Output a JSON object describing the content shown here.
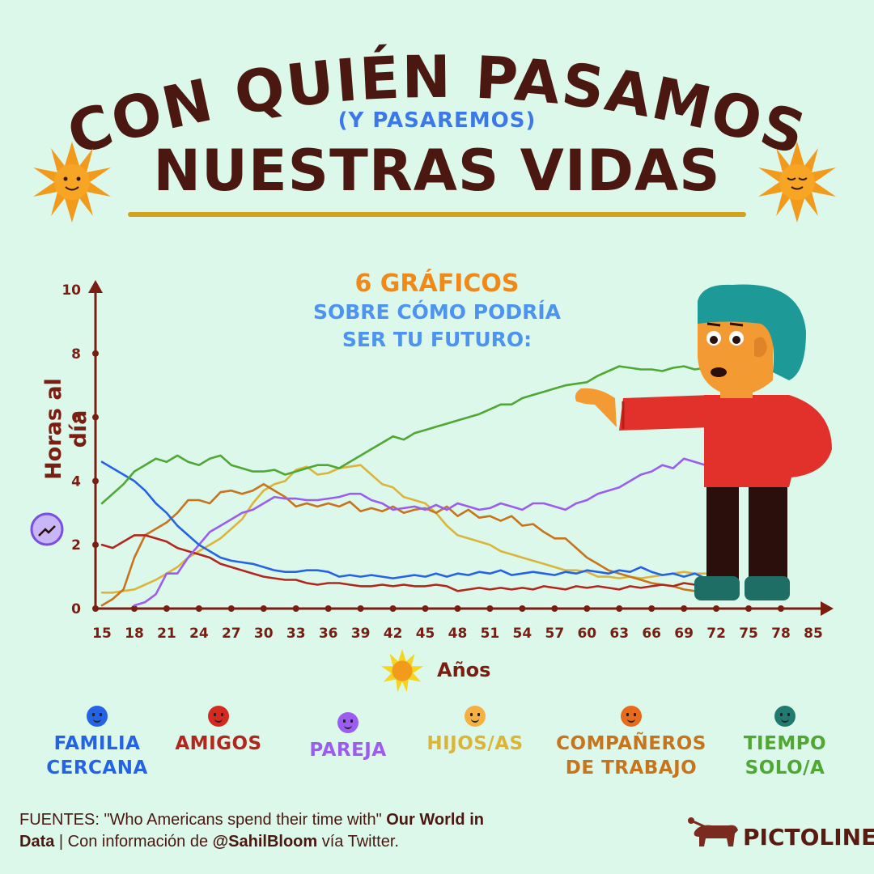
{
  "title": {
    "line1": "CON QUIÉN PASAMOS",
    "paren": "(Y PASAREMOS)",
    "line2": "NUESTRAS VIDAS"
  },
  "intro": {
    "highlight": "6 GRÁFICOS",
    "line1": "SOBRE CÓMO PODRÍA",
    "line2": "SER TU FUTURO:"
  },
  "colors": {
    "background": "#dcf8ea",
    "title": "#4a1810",
    "axis": "#7a1e12",
    "familia": "#2563e6",
    "amigos": "#b3261e",
    "pareja": "#9b5cf0",
    "hijos": "#dcb43a",
    "companeros": "#c7741c",
    "solo": "#4ea832"
  },
  "chart_data": {
    "type": "line",
    "xlabel": "Años",
    "ylabel": "Horas al día",
    "ylim": [
      0,
      10
    ],
    "y_ticks": [
      "0",
      "2",
      "4",
      "6",
      "8",
      "10"
    ],
    "x_ticks": [
      "15",
      "18",
      "21",
      "24",
      "27",
      "30",
      "33",
      "36",
      "39",
      "42",
      "45",
      "48",
      "51",
      "54",
      "57",
      "60",
      "63",
      "66",
      "69",
      "72",
      "75",
      "78",
      "85"
    ],
    "grid": false,
    "legend_position": "bottom",
    "series": [
      {
        "name": "FAMILIA CERCANA",
        "color": "#2563e6",
        "x": [
          15,
          16,
          17,
          18,
          19,
          20,
          21,
          22,
          23,
          24,
          25,
          26,
          27,
          28,
          29,
          30,
          31,
          32,
          33,
          34,
          35,
          36,
          37,
          38,
          39,
          40,
          41,
          42,
          43,
          44,
          45,
          46,
          47,
          48,
          49,
          50,
          51,
          52,
          53,
          54,
          55,
          56,
          57,
          58,
          59,
          60,
          61,
          62,
          63,
          64,
          65,
          66,
          67,
          68,
          69,
          70,
          71
        ],
        "y": [
          4.6,
          4.4,
          4.2,
          4.0,
          3.7,
          3.3,
          3.0,
          2.6,
          2.3,
          2.0,
          1.8,
          1.6,
          1.5,
          1.45,
          1.4,
          1.3,
          1.2,
          1.15,
          1.15,
          1.2,
          1.2,
          1.15,
          1.0,
          1.05,
          1.0,
          1.05,
          1.0,
          0.95,
          1.0,
          1.05,
          1.0,
          1.1,
          1.0,
          1.1,
          1.05,
          1.15,
          1.1,
          1.2,
          1.05,
          1.1,
          1.15,
          1.1,
          1.05,
          1.15,
          1.1,
          1.2,
          1.15,
          1.1,
          1.2,
          1.15,
          1.3,
          1.15,
          1.05,
          1.1,
          1.0,
          1.1,
          0.95
        ]
      },
      {
        "name": "AMIGOS",
        "color": "#b3261e",
        "x": [
          15,
          16,
          17,
          18,
          19,
          20,
          21,
          22,
          23,
          24,
          25,
          26,
          27,
          28,
          29,
          30,
          31,
          32,
          33,
          34,
          35,
          36,
          37,
          38,
          39,
          40,
          41,
          42,
          43,
          44,
          45,
          46,
          47,
          48,
          49,
          50,
          51,
          52,
          53,
          54,
          55,
          56,
          57,
          58,
          59,
          60,
          61,
          62,
          63,
          64,
          65,
          66,
          67,
          68,
          69,
          70,
          71,
          72
        ],
        "y": [
          2.0,
          1.9,
          2.1,
          2.3,
          2.3,
          2.2,
          2.1,
          1.9,
          1.8,
          1.7,
          1.6,
          1.4,
          1.3,
          1.2,
          1.1,
          1.0,
          0.95,
          0.9,
          0.9,
          0.8,
          0.75,
          0.8,
          0.8,
          0.75,
          0.7,
          0.7,
          0.75,
          0.7,
          0.75,
          0.7,
          0.7,
          0.75,
          0.7,
          0.55,
          0.6,
          0.65,
          0.6,
          0.65,
          0.6,
          0.65,
          0.6,
          0.7,
          0.65,
          0.6,
          0.7,
          0.65,
          0.7,
          0.65,
          0.6,
          0.7,
          0.65,
          0.7,
          0.75,
          0.7,
          0.8,
          0.75,
          0.85,
          0.8
        ]
      },
      {
        "name": "PAREJA",
        "color": "#9b5cf0",
        "x": [
          18,
          19,
          20,
          21,
          22,
          23,
          24,
          25,
          26,
          27,
          28,
          29,
          30,
          31,
          32,
          33,
          34,
          35,
          36,
          37,
          38,
          39,
          40,
          41,
          42,
          43,
          44,
          45,
          46,
          47,
          48,
          49,
          50,
          51,
          52,
          53,
          54,
          55,
          56,
          57,
          58,
          59,
          60,
          61,
          62,
          63,
          64,
          65,
          66,
          67,
          68,
          69,
          70,
          71
        ],
        "y": [
          0.1,
          0.2,
          0.45,
          1.1,
          1.1,
          1.6,
          2.0,
          2.4,
          2.6,
          2.8,
          3.0,
          3.1,
          3.3,
          3.5,
          3.45,
          3.45,
          3.4,
          3.4,
          3.45,
          3.5,
          3.6,
          3.6,
          3.4,
          3.3,
          3.1,
          3.15,
          3.2,
          3.1,
          3.25,
          3.1,
          3.3,
          3.2,
          3.1,
          3.15,
          3.3,
          3.2,
          3.1,
          3.3,
          3.3,
          3.2,
          3.1,
          3.3,
          3.4,
          3.6,
          3.7,
          3.8,
          4.0,
          4.2,
          4.3,
          4.5,
          4.4,
          4.7,
          4.6,
          4.5
        ]
      },
      {
        "name": "HIJOS/AS",
        "color": "#dcb43a",
        "x": [
          15,
          16,
          17,
          18,
          19,
          20,
          21,
          22,
          23,
          24,
          25,
          26,
          27,
          28,
          29,
          30,
          31,
          32,
          33,
          34,
          35,
          36,
          37,
          38,
          39,
          40,
          41,
          42,
          43,
          44,
          45,
          46,
          47,
          48,
          49,
          50,
          51,
          52,
          53,
          54,
          55,
          56,
          57,
          58,
          59,
          60,
          61,
          62,
          63,
          64,
          65,
          66,
          67,
          68,
          69,
          70,
          71
        ],
        "y": [
          0.5,
          0.5,
          0.55,
          0.6,
          0.75,
          0.9,
          1.1,
          1.3,
          1.6,
          1.8,
          2.0,
          2.2,
          2.5,
          2.8,
          3.3,
          3.7,
          3.9,
          4.0,
          4.35,
          4.45,
          4.2,
          4.25,
          4.4,
          4.45,
          4.5,
          4.2,
          3.9,
          3.8,
          3.5,
          3.4,
          3.3,
          3.0,
          2.6,
          2.3,
          2.2,
          2.1,
          2.0,
          1.8,
          1.7,
          1.6,
          1.5,
          1.4,
          1.3,
          1.2,
          1.2,
          1.15,
          1.0,
          1.0,
          0.95,
          1.0,
          0.95,
          1.0,
          1.05,
          1.1,
          1.15,
          1.1,
          1.1
        ]
      },
      {
        "name": "COMPAÑEROS DE TRABAJO",
        "color": "#c7741c",
        "x": [
          15,
          16,
          17,
          18,
          19,
          20,
          21,
          22,
          23,
          24,
          25,
          26,
          27,
          28,
          29,
          30,
          31,
          32,
          33,
          34,
          35,
          36,
          37,
          38,
          39,
          40,
          41,
          42,
          43,
          44,
          45,
          46,
          47,
          48,
          49,
          50,
          51,
          52,
          53,
          54,
          55,
          56,
          57,
          58,
          59,
          60,
          61,
          62,
          63,
          64,
          65,
          66,
          67,
          68,
          69,
          70,
          71
        ],
        "y": [
          0.1,
          0.3,
          0.6,
          1.6,
          2.3,
          2.5,
          2.7,
          3.0,
          3.4,
          3.4,
          3.3,
          3.65,
          3.7,
          3.6,
          3.7,
          3.9,
          3.7,
          3.5,
          3.2,
          3.3,
          3.2,
          3.3,
          3.2,
          3.35,
          3.05,
          3.15,
          3.05,
          3.2,
          3.0,
          3.1,
          3.15,
          3.0,
          3.2,
          2.9,
          3.1,
          2.85,
          2.9,
          2.75,
          2.9,
          2.6,
          2.65,
          2.4,
          2.2,
          2.2,
          1.9,
          1.6,
          1.4,
          1.2,
          1.1,
          1.0,
          0.9,
          0.8,
          0.75,
          0.7,
          0.6,
          0.55,
          0.5
        ]
      },
      {
        "name": "TIEMPO SOLO/A",
        "color": "#4ea832",
        "x": [
          15,
          16,
          17,
          18,
          19,
          20,
          21,
          22,
          23,
          24,
          25,
          26,
          27,
          28,
          29,
          30,
          31,
          32,
          33,
          34,
          35,
          36,
          37,
          38,
          39,
          40,
          41,
          42,
          43,
          44,
          45,
          46,
          47,
          48,
          49,
          50,
          51,
          52,
          53,
          54,
          55,
          56,
          57,
          58,
          59,
          60,
          61,
          62,
          63,
          64,
          65,
          66,
          67,
          68,
          69,
          70,
          71
        ],
        "y": [
          3.3,
          3.6,
          3.9,
          4.3,
          4.5,
          4.7,
          4.6,
          4.8,
          4.6,
          4.5,
          4.7,
          4.8,
          4.5,
          4.4,
          4.3,
          4.3,
          4.35,
          4.2,
          4.3,
          4.4,
          4.5,
          4.5,
          4.4,
          4.6,
          4.8,
          5.0,
          5.2,
          5.4,
          5.3,
          5.5,
          5.6,
          5.7,
          5.8,
          5.9,
          6.0,
          6.1,
          6.25,
          6.4,
          6.4,
          6.6,
          6.7,
          6.8,
          6.9,
          7.0,
          7.05,
          7.1,
          7.3,
          7.45,
          7.6,
          7.55,
          7.5,
          7.5,
          7.45,
          7.55,
          7.6,
          7.5,
          7.55
        ]
      }
    ]
  },
  "legend": [
    {
      "line1": "FAMILIA",
      "line2": "CERCANA",
      "color": "#2563e6",
      "face": "#2563e6"
    },
    {
      "line1": "AMIGOS",
      "line2": "",
      "color": "#b3261e",
      "face": "#d42a20"
    },
    {
      "line1": "PAREJA",
      "line2": "",
      "color": "#9b5cf0",
      "face": "#9b5cf0"
    },
    {
      "line1": "HIJOS/AS",
      "line2": "",
      "color": "#dcb43a",
      "face": "#f4b040"
    },
    {
      "line1": "COMPAÑEROS",
      "line2": "DE TRABAJO",
      "color": "#c7741c",
      "face": "#e86b1c"
    },
    {
      "line1": "TIEMPO",
      "line2": "SOLO/A",
      "color": "#4ea832",
      "face": "#1f7a70"
    }
  ],
  "sources": {
    "prefix": "FUENTES: \"Who Americans spend their time with\" ",
    "org": "Our World in Data",
    "middle": " | Con información de ",
    "handle": "@SahilBloom",
    "suffix": " vía Twitter."
  },
  "brand": "PICTOLINE"
}
